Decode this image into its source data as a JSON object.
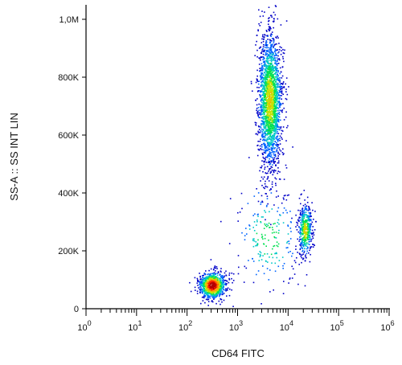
{
  "chart_data": {
    "type": "scatter",
    "title": "",
    "xlabel": "CD64 FITC",
    "ylabel": "SS-A :: SS INT LIN",
    "x_scale": "log",
    "y_scale": "linear",
    "xlim": [
      1,
      1000000
    ],
    "ylim": [
      0,
      1050000
    ],
    "x_ticks": [
      {
        "base": "10",
        "exp": "0",
        "value": 1
      },
      {
        "base": "10",
        "exp": "1",
        "value": 10
      },
      {
        "base": "10",
        "exp": "2",
        "value": 100
      },
      {
        "base": "10",
        "exp": "3",
        "value": 1000
      },
      {
        "base": "10",
        "exp": "4",
        "value": 10000
      },
      {
        "base": "10",
        "exp": "5",
        "value": 100000
      },
      {
        "base": "10",
        "exp": "6",
        "value": 1000000
      }
    ],
    "y_ticks": [
      {
        "label": "0",
        "value": 0
      },
      {
        "label": "200K",
        "value": 200000
      },
      {
        "label": "400K",
        "value": 400000
      },
      {
        "label": "600K",
        "value": 600000
      },
      {
        "label": "800K",
        "value": 800000
      },
      {
        "label": "1,0M",
        "value": 1000000
      }
    ],
    "grid": false,
    "legend": "none",
    "color_scale": [
      "#0000c8",
      "#0064ff",
      "#00c8c8",
      "#00e050",
      "#c8e000",
      "#ffa000",
      "#ff2000",
      "#b40000"
    ],
    "populations": [
      {
        "x_center": 320,
        "y_center": 80000,
        "x_spread_log": 0.13,
        "y_spread": 23000,
        "events": 900,
        "peak_density": "high"
      },
      {
        "x_center": 4400,
        "y_center": 720000,
        "x_spread_log": 0.12,
        "y_spread": 120000,
        "events": 2100,
        "peak_density": "medium"
      },
      {
        "x_center": 22000,
        "y_center": 270000,
        "x_spread_log": 0.07,
        "y_spread": 45000,
        "events": 450,
        "peak_density": "medium"
      },
      {
        "x_center": 4000,
        "y_center": 250000,
        "x_spread_log": 0.35,
        "y_spread": 90000,
        "events": 220,
        "peak_density": "low"
      }
    ]
  }
}
